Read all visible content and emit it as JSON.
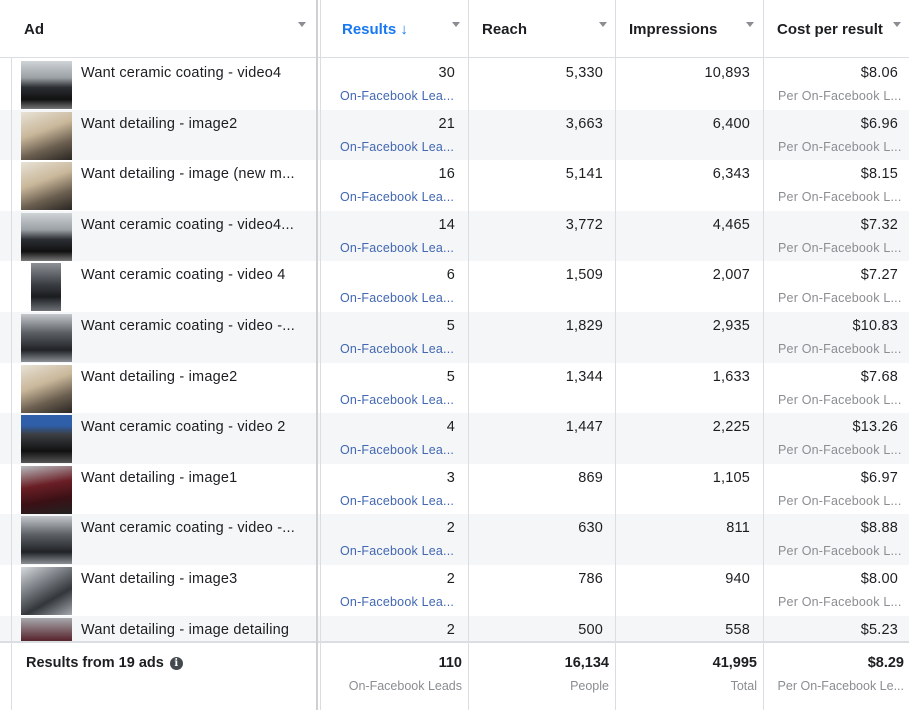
{
  "columns": {
    "ad": "Ad",
    "results": "Results ↓",
    "reach": "Reach",
    "impressions": "Impressions",
    "cost_per_result": "Cost per result"
  },
  "rows": [
    {
      "name": "Want ceramic coating - video4",
      "results": "30",
      "results_type": "On-Facebook Lea...",
      "reach": "5,330",
      "impressions": "10,893",
      "cost": "$8.06",
      "cost_type": "Per On-Facebook L...",
      "thumb": "dark-car"
    },
    {
      "name": "Want detailing - image2",
      "results": "21",
      "results_type": "On-Facebook Lea...",
      "reach": "3,663",
      "impressions": "6,400",
      "cost": "$6.96",
      "cost_type": "Per On-Facebook L...",
      "thumb": "interior"
    },
    {
      "name": "Want detailing - image (new m...",
      "results": "16",
      "results_type": "On-Facebook Lea...",
      "reach": "5,141",
      "impressions": "6,343",
      "cost": "$8.15",
      "cost_type": "Per On-Facebook L...",
      "thumb": "interior"
    },
    {
      "name": "Want ceramic coating - video4...",
      "results": "14",
      "results_type": "On-Facebook Lea...",
      "reach": "3,772",
      "impressions": "4,465",
      "cost": "$7.32",
      "cost_type": "Per On-Facebook L...",
      "thumb": "dark-car"
    },
    {
      "name": "Want ceramic coating - video 4",
      "results": "6",
      "results_type": "On-Facebook Lea...",
      "reach": "1,509",
      "impressions": "2,007",
      "cost": "$7.27",
      "cost_type": "Per On-Facebook L...",
      "thumb": "tall-car"
    },
    {
      "name": "Want ceramic coating - video -...",
      "results": "5",
      "results_type": "On-Facebook Lea...",
      "reach": "1,829",
      "impressions": "2,935",
      "cost": "$10.83",
      "cost_type": "Per On-Facebook L...",
      "thumb": "side-car"
    },
    {
      "name": "Want detailing - image2",
      "results": "5",
      "results_type": "On-Facebook Lea...",
      "reach": "1,344",
      "impressions": "1,633",
      "cost": "$7.68",
      "cost_type": "Per On-Facebook L...",
      "thumb": "interior"
    },
    {
      "name": "Want ceramic coating - video 2",
      "results": "4",
      "results_type": "On-Facebook Lea...",
      "reach": "1,447",
      "impressions": "2,225",
      "cost": "$13.26",
      "cost_type": "Per On-Facebook L...",
      "thumb": "blue-banner-car"
    },
    {
      "name": "Want detailing - image1",
      "results": "3",
      "results_type": "On-Facebook Lea...",
      "reach": "869",
      "impressions": "1,105",
      "cost": "$6.97",
      "cost_type": "Per On-Facebook L...",
      "thumb": "red-car"
    },
    {
      "name": "Want ceramic coating - video -...",
      "results": "2",
      "results_type": "On-Facebook Lea...",
      "reach": "630",
      "impressions": "811",
      "cost": "$8.88",
      "cost_type": "Per On-Facebook L...",
      "thumb": "side-car"
    },
    {
      "name": "Want detailing - image3",
      "results": "2",
      "results_type": "On-Facebook Lea...",
      "reach": "786",
      "impressions": "940",
      "cost": "$8.00",
      "cost_type": "Per On-Facebook L...",
      "thumb": "engine"
    },
    {
      "name": "Want detailing - image detailing",
      "results": "2",
      "results_type": "",
      "reach": "500",
      "impressions": "558",
      "cost": "$5.23",
      "cost_type": "",
      "thumb": "maroon-car"
    }
  ],
  "footer": {
    "title": "Results from 19 ads",
    "info_icon": "i",
    "results": "110",
    "results_label": "On-Facebook Leads",
    "reach": "16,134",
    "reach_label": "People",
    "impressions": "41,995",
    "impressions_label": "Total",
    "cost": "$8.29",
    "cost_label": "Per On-Facebook Le..."
  },
  "colors": {
    "accent": "#1877f2",
    "link": "#4267b2",
    "muted": "#8a8d91",
    "row_alt": "#f5f6f7"
  }
}
